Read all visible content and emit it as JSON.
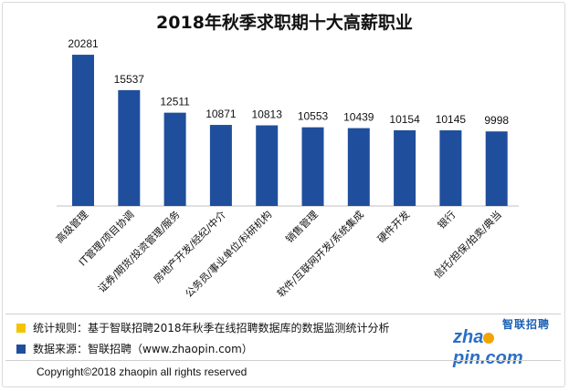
{
  "chart_data": {
    "type": "bar",
    "title": "2018年秋季求职期十大高薪职业",
    "categories": [
      "高级管理",
      "IT管理/项目协调",
      "证券/期货/投资管理/服务",
      "房地产开发/经纪/中介",
      "公务员/事业单位/科研机构",
      "销售管理",
      "软件/互联网开发/系统集成",
      "硬件开发",
      "银行",
      "信托/担保/拍卖/典当"
    ],
    "values": [
      20281,
      15537,
      12511,
      10871,
      10813,
      10553,
      10439,
      10154,
      10145,
      9998
    ],
    "ylim": [
      0,
      22000
    ],
    "grid": false,
    "colors": {
      "bar": "#1f4e9c"
    }
  },
  "notes": [
    {
      "text": "统计规则：基于智联招聘2018年秋季在线招聘数据库的数据监测统计分析",
      "color": "#f5c400"
    },
    {
      "text": "数据来源：智联招聘（www.zhaopin.com）",
      "color": "#1f4e9c"
    }
  ],
  "copyright": "Copyright©2018 zhaopin all rights reserved",
  "logo": {
    "cn": "智联招聘",
    "en_left": "zha",
    "en_right": "pin.com"
  }
}
